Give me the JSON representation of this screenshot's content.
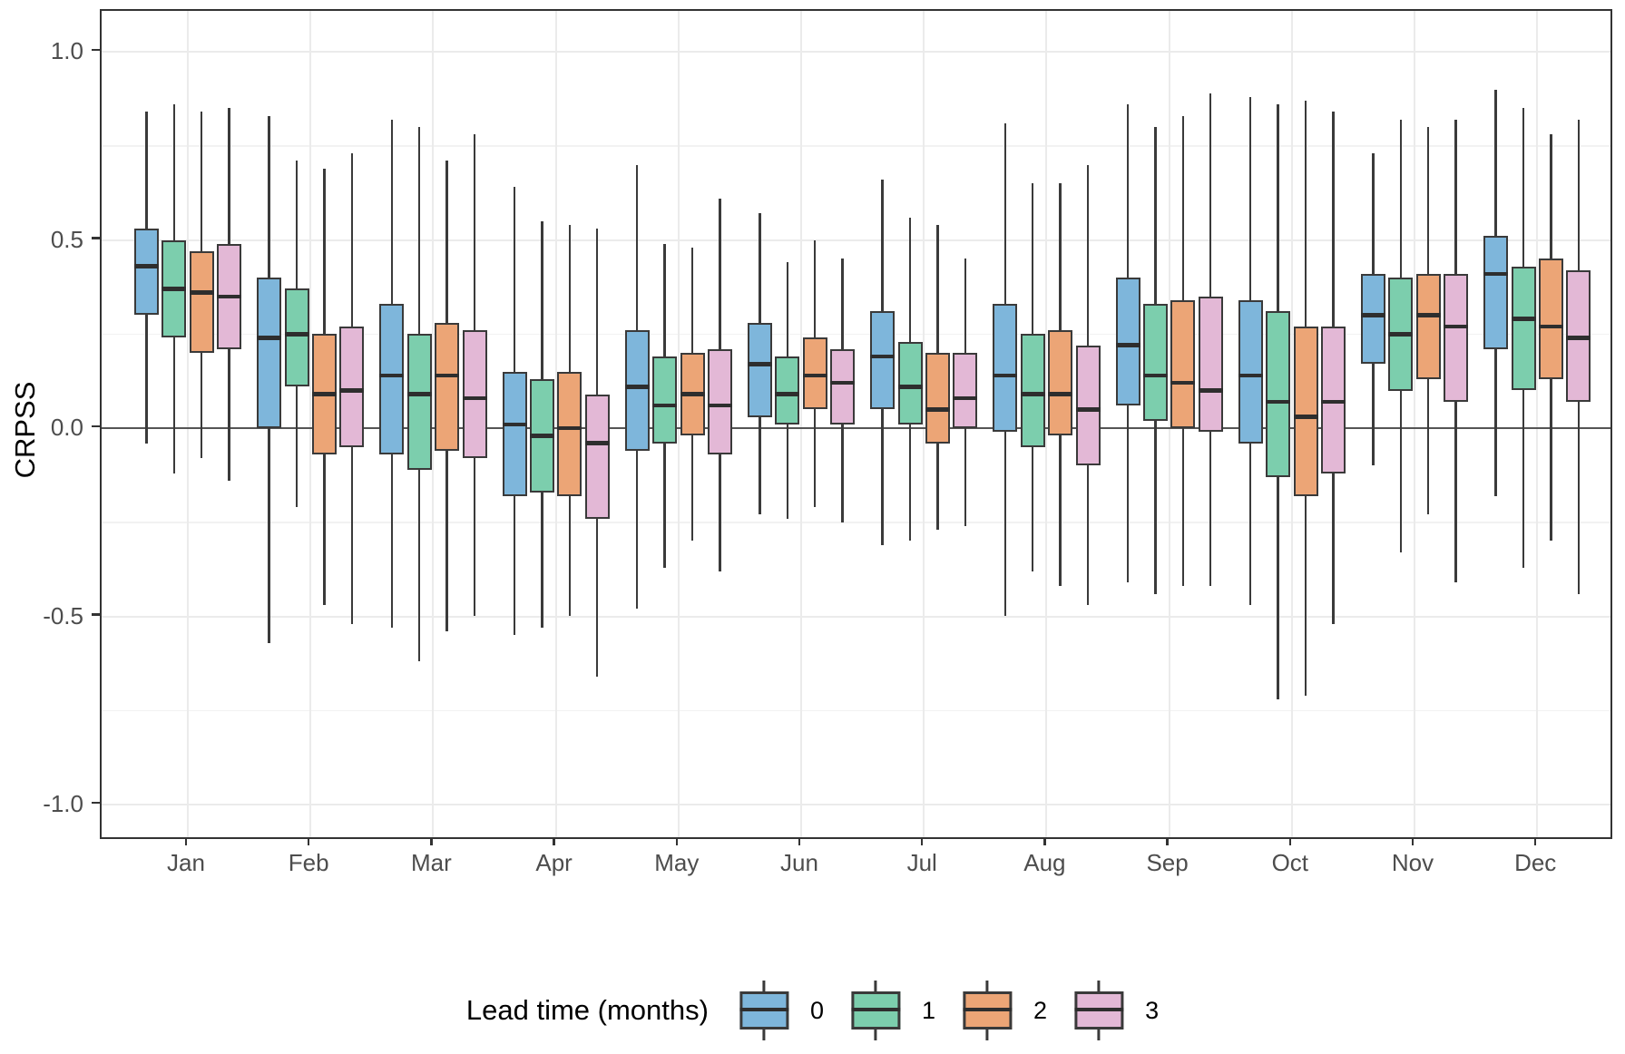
{
  "y_axis": {
    "title": "CRPSS",
    "ticks": [
      {
        "label": "1.0",
        "value": 1.0
      },
      {
        "label": "0.5",
        "value": 0.5
      },
      {
        "label": "0.0",
        "value": 0.0
      },
      {
        "label": "-0.5",
        "value": -0.5
      },
      {
        "label": "-1.0",
        "value": -1.0
      }
    ]
  },
  "legend": {
    "title": "Lead time (months)",
    "items": [
      {
        "label": "0",
        "color": "#7eb6db"
      },
      {
        "label": "1",
        "color": "#7ccead"
      },
      {
        "label": "2",
        "color": "#eca576"
      },
      {
        "label": "3",
        "color": "#e3b8d6"
      }
    ]
  },
  "style_colors": {
    "box_stroke": "#3a3a3a",
    "zero_line": "#555555",
    "panel_border": "#333333",
    "gridline": "#ebebeb",
    "tick_text": "#4d4d4d"
  },
  "chart_data": {
    "type": "boxplot",
    "title": "",
    "xlabel": "",
    "ylabel": "CRPSS",
    "ylim": [
      -1.1,
      1.1
    ],
    "grid": "on",
    "legend_position": "bottom",
    "box_format": [
      "whisker_low",
      "q1",
      "median",
      "q3",
      "whisker_high"
    ],
    "categories": [
      "Jan",
      "Feb",
      "Mar",
      "Apr",
      "May",
      "Jun",
      "Jul",
      "Aug",
      "Sep",
      "Oct",
      "Nov",
      "Dec"
    ],
    "series": [
      {
        "name": "0",
        "color": "#7eb6db",
        "boxes": [
          [
            -0.04,
            0.3,
            0.43,
            0.53,
            0.84
          ],
          [
            -0.57,
            0.0,
            0.24,
            0.4,
            0.83
          ],
          [
            -0.53,
            -0.07,
            0.14,
            0.33,
            0.82
          ],
          [
            -0.55,
            -0.18,
            0.01,
            0.15,
            0.64
          ],
          [
            -0.48,
            -0.06,
            0.11,
            0.26,
            0.7
          ],
          [
            -0.23,
            0.03,
            0.17,
            0.28,
            0.57
          ],
          [
            -0.31,
            0.05,
            0.19,
            0.31,
            0.66
          ],
          [
            -0.5,
            -0.01,
            0.14,
            0.33,
            0.81
          ],
          [
            -0.41,
            0.06,
            0.22,
            0.4,
            0.86
          ],
          [
            -0.47,
            -0.04,
            0.14,
            0.34,
            0.88
          ],
          [
            -0.1,
            0.17,
            0.3,
            0.41,
            0.73
          ],
          [
            -0.18,
            0.21,
            0.41,
            0.51,
            0.9
          ]
        ]
      },
      {
        "name": "1",
        "color": "#7ccead",
        "boxes": [
          [
            -0.12,
            0.24,
            0.37,
            0.5,
            0.86
          ],
          [
            -0.21,
            0.11,
            0.25,
            0.37,
            0.71
          ],
          [
            -0.62,
            -0.11,
            0.09,
            0.25,
            0.8
          ],
          [
            -0.53,
            -0.17,
            -0.02,
            0.13,
            0.55
          ],
          [
            -0.37,
            -0.04,
            0.06,
            0.19,
            0.49
          ],
          [
            -0.24,
            0.01,
            0.09,
            0.19,
            0.44
          ],
          [
            -0.3,
            0.01,
            0.11,
            0.23,
            0.56
          ],
          [
            -0.38,
            -0.05,
            0.09,
            0.25,
            0.65
          ],
          [
            -0.44,
            0.02,
            0.14,
            0.33,
            0.8
          ],
          [
            -0.72,
            -0.13,
            0.07,
            0.31,
            0.86
          ],
          [
            -0.33,
            0.1,
            0.25,
            0.4,
            0.82
          ],
          [
            -0.37,
            0.1,
            0.29,
            0.43,
            0.85
          ]
        ]
      },
      {
        "name": "2",
        "color": "#eca576",
        "boxes": [
          [
            -0.08,
            0.2,
            0.36,
            0.47,
            0.84
          ],
          [
            -0.47,
            -0.07,
            0.09,
            0.25,
            0.69
          ],
          [
            -0.54,
            -0.06,
            0.14,
            0.28,
            0.71
          ],
          [
            -0.5,
            -0.18,
            0.0,
            0.15,
            0.54
          ],
          [
            -0.3,
            -0.02,
            0.09,
            0.2,
            0.48
          ],
          [
            -0.21,
            0.05,
            0.14,
            0.24,
            0.5
          ],
          [
            -0.27,
            -0.04,
            0.05,
            0.2,
            0.54
          ],
          [
            -0.42,
            -0.02,
            0.09,
            0.26,
            0.65
          ],
          [
            -0.42,
            0.0,
            0.12,
            0.34,
            0.83
          ],
          [
            -0.71,
            -0.18,
            0.03,
            0.27,
            0.87
          ],
          [
            -0.23,
            0.13,
            0.3,
            0.41,
            0.8
          ],
          [
            -0.3,
            0.13,
            0.27,
            0.45,
            0.78
          ]
        ]
      },
      {
        "name": "3",
        "color": "#e3b8d6",
        "boxes": [
          [
            -0.14,
            0.21,
            0.35,
            0.49,
            0.85
          ],
          [
            -0.52,
            -0.05,
            0.1,
            0.27,
            0.73
          ],
          [
            -0.5,
            -0.08,
            0.08,
            0.26,
            0.78
          ],
          [
            -0.66,
            -0.24,
            -0.04,
            0.09,
            0.53
          ],
          [
            -0.38,
            -0.07,
            0.06,
            0.21,
            0.61
          ],
          [
            -0.25,
            0.01,
            0.12,
            0.21,
            0.45
          ],
          [
            -0.26,
            0.0,
            0.08,
            0.2,
            0.45
          ],
          [
            -0.47,
            -0.1,
            0.05,
            0.22,
            0.7
          ],
          [
            -0.42,
            -0.01,
            0.1,
            0.35,
            0.89
          ],
          [
            -0.52,
            -0.12,
            0.07,
            0.27,
            0.84
          ],
          [
            -0.41,
            0.07,
            0.27,
            0.41,
            0.82
          ],
          [
            -0.44,
            0.07,
            0.24,
            0.42,
            0.82
          ]
        ]
      }
    ]
  }
}
